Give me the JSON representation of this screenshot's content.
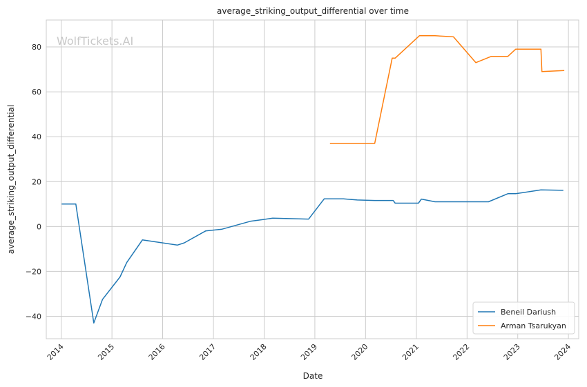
{
  "chart_data": {
    "type": "line",
    "title": "average_striking_output_differential over time",
    "xlabel": "Date",
    "ylabel": "average_striking_output_differential",
    "watermark": "WolfTickets.AI",
    "xlim": [
      "2013-09-15",
      "2024-03-15"
    ],
    "ylim": [
      -50,
      92
    ],
    "x_ticks": [
      "2014",
      "2015",
      "2016",
      "2017",
      "2018",
      "2019",
      "2020",
      "2021",
      "2022",
      "2023",
      "2024"
    ],
    "y_ticks": [
      -40,
      -20,
      0,
      20,
      40,
      60,
      80
    ],
    "y_tick_labels": [
      "−40",
      "−20",
      "0",
      "20",
      "40",
      "60",
      "80"
    ],
    "grid": true,
    "legend_position": "lower-right",
    "series": [
      {
        "name": "Beneil Dariush",
        "color": "#1f77b4",
        "points": [
          [
            "2014-01-04",
            10.0
          ],
          [
            "2014-04-16",
            10.0
          ],
          [
            "2014-08-23",
            -43.0
          ],
          [
            "2014-10-25",
            -32.5
          ],
          [
            "2015-02-28",
            -22.5
          ],
          [
            "2015-04-18",
            -16.0
          ],
          [
            "2015-08-08",
            -6.0
          ],
          [
            "2016-04-16",
            -8.3
          ],
          [
            "2016-06-04",
            -7.3
          ],
          [
            "2016-11-05",
            -2.0
          ],
          [
            "2017-03-04",
            -1.2
          ],
          [
            "2017-09-23",
            2.3
          ],
          [
            "2018-03-03",
            3.7
          ],
          [
            "2018-11-17",
            3.3
          ],
          [
            "2019-03-09",
            12.3
          ],
          [
            "2019-07-27",
            12.3
          ],
          [
            "2019-11-02",
            11.8
          ],
          [
            "2020-03-07",
            11.6
          ],
          [
            "2020-07-18",
            11.6
          ],
          [
            "2020-08-01",
            10.4
          ],
          [
            "2021-01-16",
            10.4
          ],
          [
            "2021-02-06",
            12.2
          ],
          [
            "2021-05-15",
            11.0
          ],
          [
            "2022-06-04",
            11.0
          ],
          [
            "2022-10-22",
            14.6
          ],
          [
            "2022-12-17",
            14.6
          ],
          [
            "2023-06-17",
            16.3
          ],
          [
            "2023-11-25",
            16.1
          ]
        ]
      },
      {
        "name": "Arman Tsarukyan",
        "color": "#ff7f0e",
        "points": [
          [
            "2019-04-20",
            37.0
          ],
          [
            "2020-03-07",
            37.0
          ],
          [
            "2020-07-11",
            75.0
          ],
          [
            "2020-08-01",
            75.0
          ],
          [
            "2021-01-23",
            85.0
          ],
          [
            "2021-05-15",
            85.0
          ],
          [
            "2021-09-25",
            84.5
          ],
          [
            "2022-03-05",
            73.0
          ],
          [
            "2022-06-25",
            75.8
          ],
          [
            "2022-10-22",
            75.8
          ],
          [
            "2022-12-17",
            79.0
          ],
          [
            "2023-06-17",
            79.0
          ],
          [
            "2023-06-24",
            69.0
          ],
          [
            "2023-12-02",
            69.5
          ]
        ]
      }
    ]
  }
}
